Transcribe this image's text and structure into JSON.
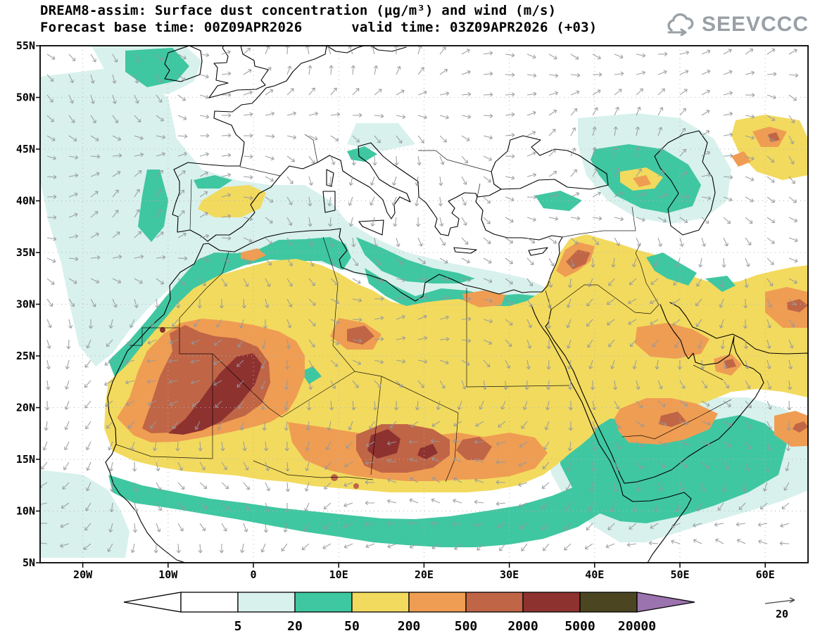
{
  "header": {
    "title_line1": "DREAM8-assim: Surface dust concentration (μg/m³) and wind (m/s)",
    "title_line2": "Forecast base time: 00Z09APR2026      valid time: 03Z09APR2026 (+03)",
    "logo_text": "SEEVCCC",
    "model": "DREAM8-assim",
    "base_time": "00Z09APR2026",
    "valid_time": "03Z09APR2026",
    "lead": "+03"
  },
  "map": {
    "y_axis_labels": [
      "55N",
      "50N",
      "45N",
      "40N",
      "35N",
      "30N",
      "25N",
      "20N",
      "15N",
      "10N",
      "5N"
    ],
    "x_axis_labels": [
      "20W",
      "10W",
      "0",
      "10E",
      "20E",
      "30E",
      "40E",
      "50E",
      "60E"
    ]
  },
  "legend": {
    "values": [
      "5",
      "20",
      "50",
      "200",
      "500",
      "2000",
      "5000",
      "20000"
    ],
    "bin_colors": [
      "#ffffff",
      "#d8f1ec",
      "#3fc7a1",
      "#f2da5e",
      "#ef9d53",
      "#c06546",
      "#8e3230",
      "#4c4522"
    ],
    "over_color": "#9b73ae",
    "wind_reference": "20"
  },
  "chart_data": {
    "type": "heatmap",
    "title": "DREAM8-assim: Surface dust concentration (μg/m³) and wind (m/s)",
    "variable": "surface dust concentration",
    "units": "μg/m³",
    "wind_units": "m/s",
    "wind_reference_arrow": 20,
    "forecast_base_time": "00Z09APR2026",
    "valid_time": "03Z09APR2026 (+03)",
    "lon_ticks": [
      "20W",
      "10W",
      "0",
      "10E",
      "20E",
      "30E",
      "40E",
      "50E",
      "60E"
    ],
    "lat_ticks": [
      "5N",
      "10N",
      "15N",
      "20N",
      "25N",
      "30N",
      "35N",
      "40N",
      "45N",
      "50N",
      "55N"
    ],
    "contour_levels": [
      5,
      20,
      50,
      200,
      500,
      2000,
      5000,
      20000
    ],
    "legend_position": "bottom",
    "grid": "dotted, 10° lon × 5° lat",
    "notable_features": [
      "Dust maxima 2000–5000 μg/m³ over Mauritania–Mali–southern Algeria",
      "Dust maxima 2000–5000 μg/m³ over Niger–Chad and Darfur",
      "500–2000 μg/m³ plume over Syria/Levant",
      "200–2000 μg/m³ over the eastern Arabian Peninsula and Gulf coast",
      "Broad 50–200 μg/m³ cover across Sahara, Sahel, Egypt and Middle East",
      "20–50 μg/m³ fringes over Mediterranean coasts, Red Sea, Horn of Africa, Caucasus, Iberia and Ireland",
      "Gray wind vectors plotted over entire domain, reference 20 m/s"
    ]
  }
}
